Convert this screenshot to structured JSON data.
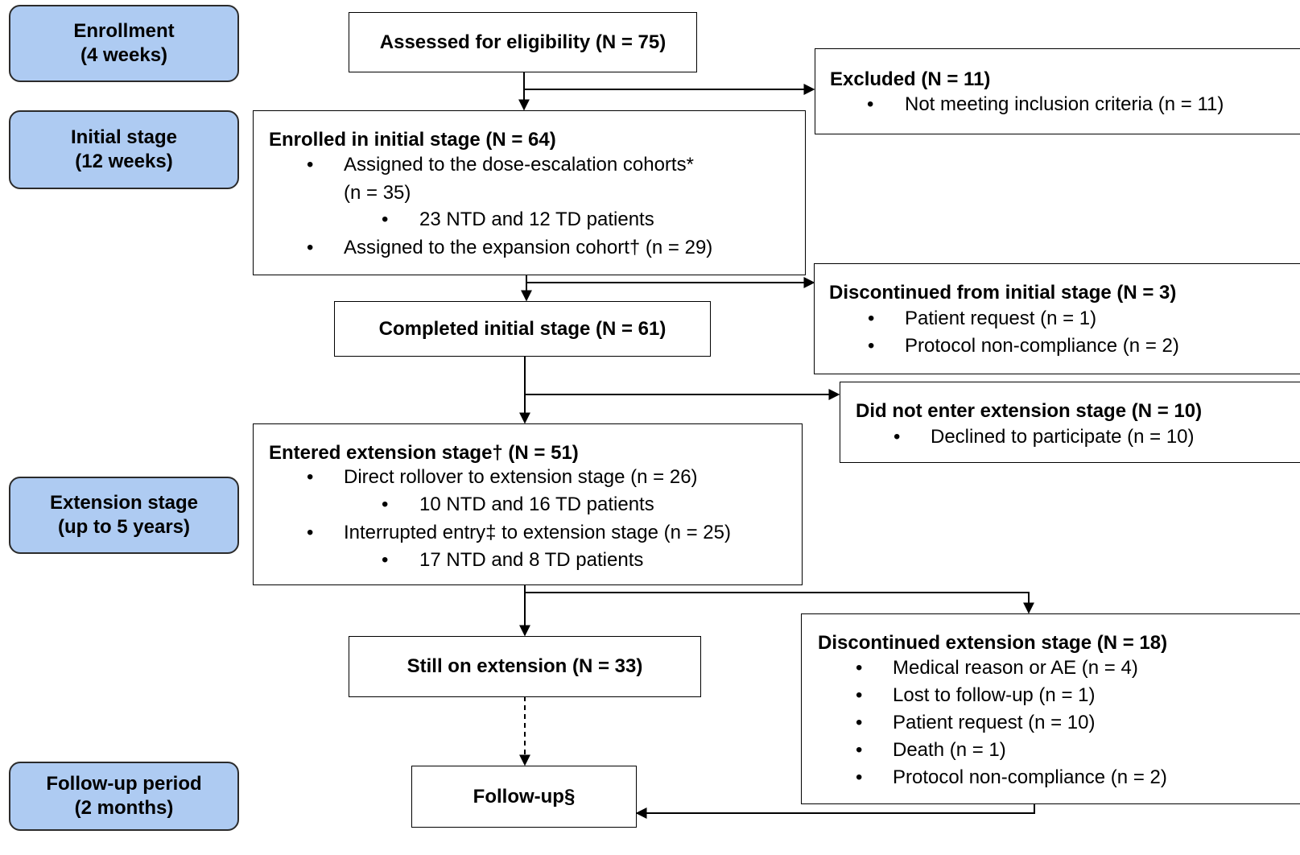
{
  "stages": {
    "enrollment": [
      "Enrollment",
      "(4 weeks)"
    ],
    "initial": [
      "Initial stage",
      "(12 weeks)"
    ],
    "extension": [
      "Extension stage",
      "(up to 5 years)"
    ],
    "followup": [
      "Follow-up period",
      "(2 months)"
    ]
  },
  "boxes": {
    "assessed": "Assessed for eligibility (N = 75)",
    "excluded": {
      "title": "Excluded (N = 11)",
      "items": [
        "Not meeting inclusion criteria (n = 11)"
      ]
    },
    "enrolled": {
      "title": "Enrolled in initial stage (N = 64)",
      "items": [
        "Assigned to the dose-escalation cohorts*",
        "(n = 35)",
        "23 NTD and 12 TD patients",
        "Assigned to the expansion cohort† (n = 29)"
      ]
    },
    "disc_initial": {
      "title": "Discontinued from initial stage (N = 3)",
      "items": [
        "Patient request (n = 1)",
        "Protocol non-compliance (n = 2)"
      ]
    },
    "completed": "Completed initial stage (N = 61)",
    "not_entered": {
      "title": "Did not enter extension stage (N = 10)",
      "items": [
        "Declined to participate (n = 10)"
      ]
    },
    "entered": {
      "title": "Entered extension stage† (N = 51)",
      "items": [
        "Direct rollover to extension stage (n = 26)",
        "10 NTD and 16 TD patients",
        "Interrupted entry‡ to extension stage (n = 25)",
        "17 NTD and 8 TD patients"
      ]
    },
    "still_on": "Still on extension (N = 33)",
    "disc_ext": {
      "title": "Discontinued extension stage (N = 18)",
      "items": [
        "Medical reason or AE (n = 4)",
        "Lost to follow-up (n = 1)",
        "Patient request (n = 10)",
        "Death (n = 1)",
        "Protocol non-compliance (n = 2)"
      ]
    },
    "followup": "Follow-up§"
  },
  "bullet": "•"
}
